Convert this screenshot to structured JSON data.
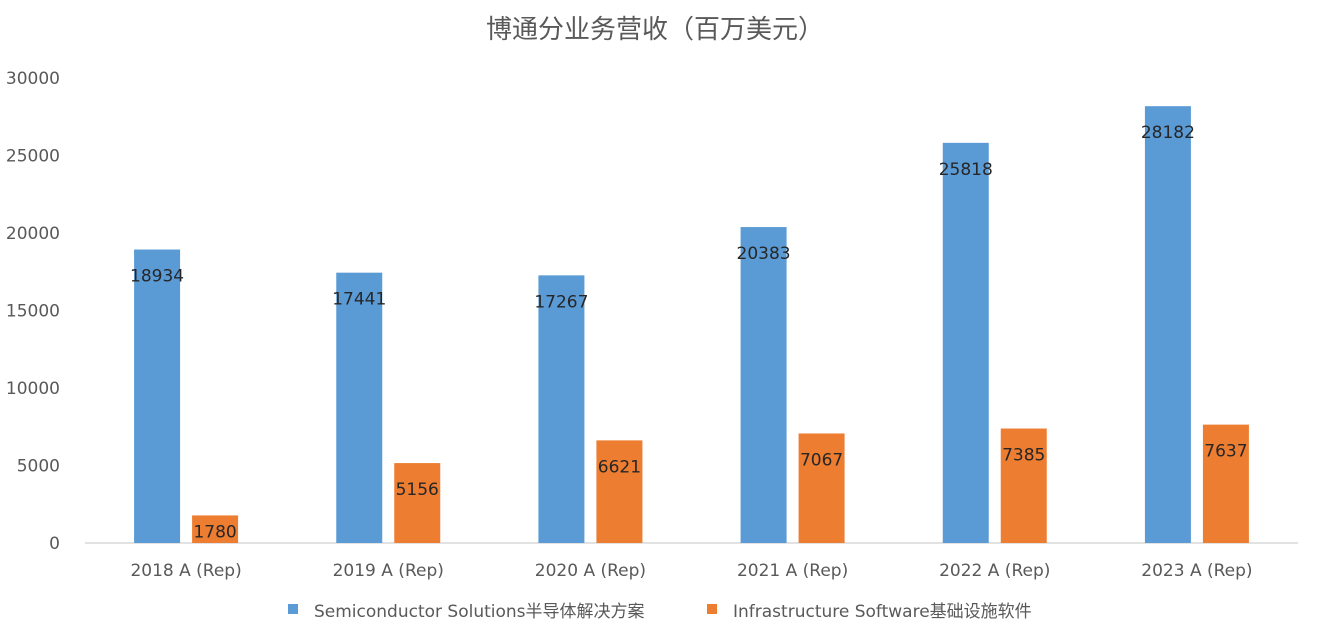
{
  "chart_data": {
    "type": "bar",
    "title": "博通分业务营收（百万美元）",
    "xlabel": "",
    "ylabel": "",
    "ylim": [
      0,
      30000
    ],
    "yticks": [
      0,
      5000,
      10000,
      15000,
      20000,
      25000,
      30000
    ],
    "grid": false,
    "legend_position": "bottom",
    "categories": [
      "2018 A (Rep)",
      "2019 A (Rep)",
      "2020 A (Rep)",
      "2021 A (Rep)",
      "2022 A (Rep)",
      "2023 A (Rep)"
    ],
    "series": [
      {
        "name": "Semiconductor Solutions半导体解决方案",
        "color": "#5B9BD5",
        "values": [
          18934,
          17441,
          17267,
          20383,
          25818,
          28182
        ]
      },
      {
        "name": "Infrastructure Software基础设施软件",
        "color": "#ED7D31",
        "values": [
          1780,
          5156,
          6621,
          7067,
          7385,
          7637
        ]
      }
    ]
  }
}
